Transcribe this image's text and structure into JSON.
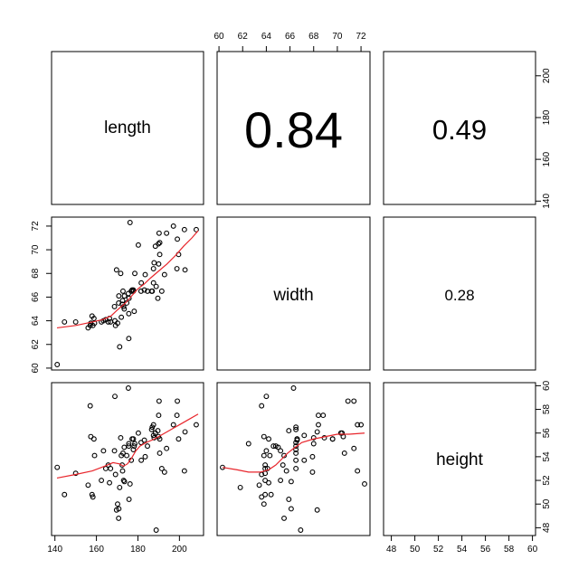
{
  "chart_data": {
    "type": "scatter-matrix",
    "variables": [
      "length",
      "width",
      "height"
    ],
    "ranges": {
      "length": [
        141,
        209
      ],
      "width": [
        60.3,
        72.3
      ],
      "height": [
        47.8,
        59.8
      ]
    },
    "ticks": {
      "length": [
        140,
        160,
        180,
        200
      ],
      "width": [
        60,
        62,
        64,
        66,
        68,
        70,
        72
      ],
      "height": [
        48,
        50,
        52,
        54,
        56,
        58,
        60
      ]
    },
    "correlations": {
      "length_width": "0.84",
      "length_height": "0.49",
      "width_height": "0.28"
    },
    "points": {
      "length": [
        141.1,
        144.6,
        150.0,
        156.0,
        157.0,
        157.3,
        157.9,
        158.3,
        158.8,
        159.1,
        162.4,
        163.4,
        164.5,
        165.7,
        166.3,
        166.8,
        168.7,
        168.9,
        169.2,
        169.7,
        170.2,
        170.7,
        170.8,
        171.2,
        171.7,
        172.0,
        172.4,
        172.6,
        172.8,
        173.1,
        173.4,
        173.5,
        174.6,
        175.4,
        175.6,
        175.6,
        175.7,
        176.2,
        176.8,
        177.2,
        177.8,
        177.8,
        178.2,
        178.5,
        180.2,
        181.5,
        181.6,
        183.1,
        183.5,
        184.6,
        186.6,
        186.9,
        187.5,
        187.5,
        187.8,
        188.4,
        188.8,
        189.6,
        189.9,
        190.0,
        190.2,
        190.5,
        190.5,
        191.5,
        192.8,
        193.8,
        197.1,
        198.8,
        199.0,
        199.6,
        202.4,
        202.7,
        208.1
      ],
      "width": [
        60.3,
        63.9,
        63.9,
        63.4,
        63.6,
        63.8,
        64.4,
        63.6,
        64.2,
        63.8,
        63.9,
        64.0,
        64.1,
        63.9,
        64.2,
        63.9,
        65.2,
        64.0,
        63.6,
        68.3,
        63.8,
        65.5,
        66.1,
        61.8,
        68.0,
        64.3,
        65.4,
        65.7,
        66.5,
        65.2,
        65.0,
        66.1,
        65.5,
        66.3,
        64.6,
        62.5,
        65.9,
        72.3,
        66.5,
        66.6,
        66.6,
        66.5,
        64.8,
        68.0,
        70.4,
        66.5,
        67.2,
        66.6,
        67.9,
        66.5,
        66.5,
        66.5,
        68.4,
        67.2,
        68.9,
        70.3,
        66.9,
        65.9,
        70.5,
        68.8,
        71.4,
        69.6,
        70.6,
        66.5,
        67.9,
        71.4,
        72.0,
        68.4,
        70.9,
        69.6,
        71.7,
        68.3,
        71.7
      ],
      "height": [
        53.1,
        50.8,
        52.6,
        51.6,
        58.3,
        55.7,
        50.8,
        50.6,
        55.5,
        54.1,
        52.0,
        54.5,
        53.0,
        53.3,
        51.8,
        53.0,
        54.5,
        59.1,
        52.5,
        49.5,
        50.0,
        48.8,
        49.6,
        51.4,
        55.6,
        54.1,
        53.3,
        52.8,
        54.3,
        52.0,
        54.8,
        51.9,
        54.1,
        59.8,
        54.9,
        55.1,
        50.4,
        51.7,
        53.7,
        55.5,
        55.5,
        54.6,
        54.9,
        55.1,
        56.0,
        55.2,
        53.7,
        55.4,
        54.0,
        54.9,
        56.3,
        56.5,
        56.7,
        55.8,
        55.6,
        56.0,
        47.8,
        56.2,
        55.7,
        57.5,
        58.7,
        55.5,
        54.3,
        53.0,
        52.7,
        54.7,
        56.7,
        57.5,
        58.7,
        55.5,
        52.8,
        56.1,
        56.7
      ]
    },
    "smooth": {
      "length_width": {
        "x": [
          141,
          150,
          158,
          163,
          167,
          170,
          172,
          174,
          176,
          178,
          180,
          183,
          186,
          190,
          194,
          198,
          202,
          206,
          209
        ],
        "y": [
          63.4,
          63.6,
          63.9,
          64.1,
          64.4,
          64.9,
          65.2,
          65.5,
          65.9,
          66.3,
          66.7,
          67.1,
          67.6,
          68.2,
          68.8,
          69.5,
          70.3,
          71.0,
          71.6
        ]
      },
      "length_height": {
        "x": [
          141,
          150,
          158,
          164,
          168,
          171,
          173,
          175,
          177,
          179,
          181,
          184,
          188,
          192,
          196,
          200,
          204,
          209
        ],
        "y": [
          52.2,
          52.5,
          52.8,
          53.2,
          53.5,
          53.4,
          53.2,
          53.4,
          53.9,
          54.5,
          54.9,
          55.2,
          55.5,
          55.9,
          56.3,
          56.7,
          57.1,
          57.6
        ]
      },
      "width_height": {
        "x": [
          60.3,
          61.5,
          62.5,
          63.5,
          64.2,
          64.8,
          65.3,
          65.8,
          66.3,
          67.0,
          68.0,
          69.0,
          70.0,
          71.0,
          72.3
        ],
        "y": [
          53.1,
          52.9,
          52.7,
          52.7,
          52.9,
          53.3,
          53.8,
          54.3,
          54.7,
          55.2,
          55.5,
          55.7,
          55.9,
          55.9,
          56.0
        ]
      }
    }
  }
}
